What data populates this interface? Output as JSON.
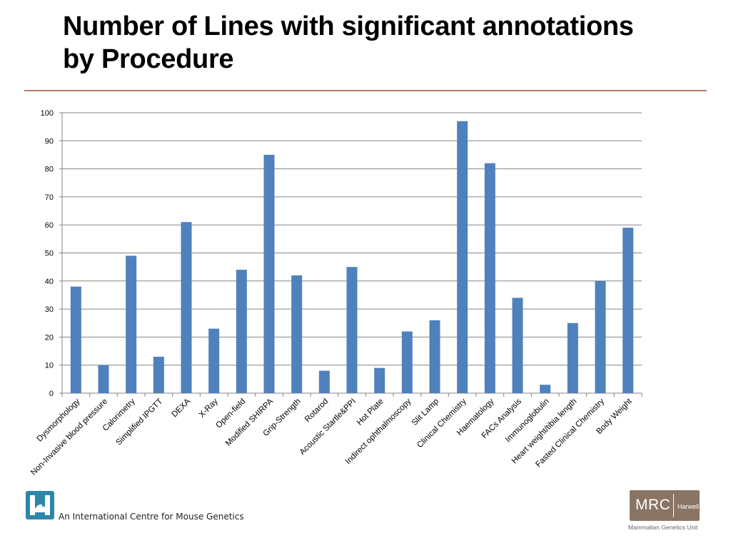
{
  "slide": {
    "title_line1": "Number of Lines with significant annotations",
    "title_line2": "by Procedure"
  },
  "footer": {
    "centre_text": "An International Centre for Mouse Genetics",
    "mrc_logo_text": "MRC",
    "mrc_logo_subtext": "Harwell",
    "mrc_unit_text": "Mammalian Genetics Unit",
    "logo_icon": "mouse-h-logo-icon"
  },
  "colors": {
    "bar": "#4f81bd",
    "title_rule": "#b8786e",
    "gridline": "#868686",
    "logo_teal": "#2e86a8",
    "mrc_brown": "#8a7565"
  },
  "chart_data": {
    "type": "bar",
    "title": "",
    "xlabel": "",
    "ylabel": "",
    "ylim": [
      0,
      100
    ],
    "yticks": [
      0,
      10,
      20,
      30,
      40,
      50,
      60,
      70,
      80,
      90,
      100
    ],
    "grid": true,
    "legend": "none",
    "categories": [
      "Dysmorphology",
      "Non-Invasive blood pressure",
      "Calorimetry",
      "Simplified IPGTT",
      "DEXA",
      "X-Ray",
      "Open-field",
      "Modified SHIRPA",
      "Grip-Strength",
      "Rotarod",
      "Acoustic Startle&PPI",
      "Hot Plate",
      "Indirect ophthalmoscopy",
      "Slit Lamp",
      "Clinical Chemistry",
      "Haematology",
      "FACs Analysis",
      "Immunoglobulin",
      "Heart weight/tibia length",
      "Fasted Clinical Chemistry",
      "Body Weight"
    ],
    "values": [
      38,
      10,
      49,
      13,
      61,
      23,
      44,
      85,
      42,
      8,
      45,
      9,
      22,
      26,
      97,
      82,
      34,
      3,
      25,
      40,
      59
    ]
  }
}
